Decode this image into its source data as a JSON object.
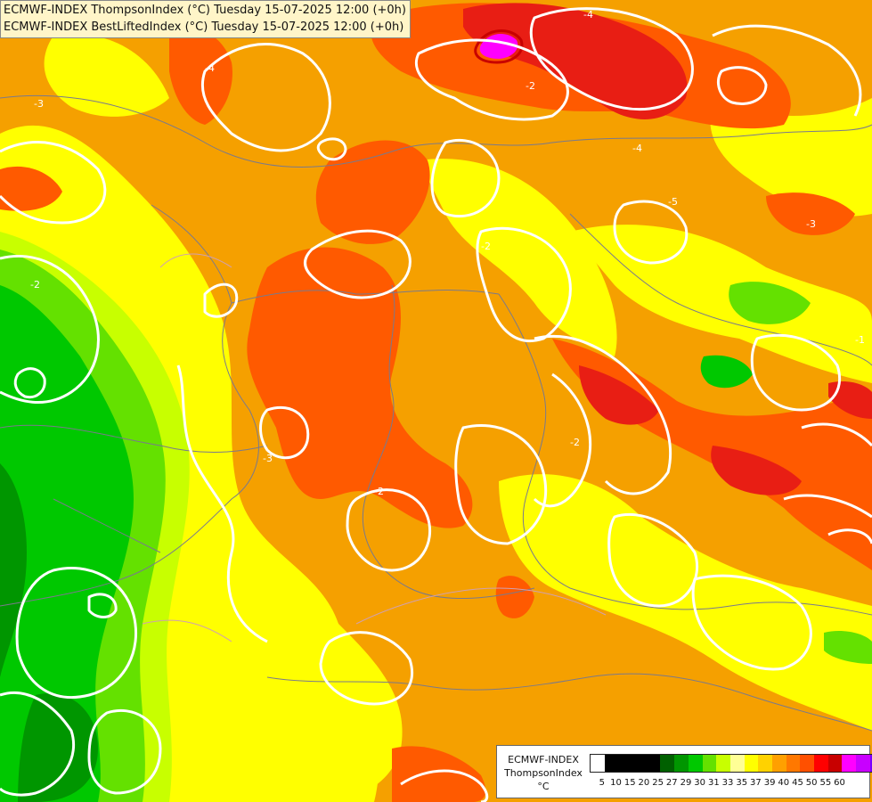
{
  "header": {
    "line1": "ECMWF-INDEX ThompsonIndex (°C) Tuesday 15-07-2025 12:00 (+0h)",
    "line2": "ECMWF-INDEX BestLiftedIndex (°C) Tuesday 15-07-2025 12:00 (+0h)"
  },
  "legend": {
    "title1": "ECMWF-INDEX",
    "title2": "ThompsonIndex",
    "unit": "°C",
    "swatches": [
      "#ffffff",
      "#000000",
      "#000000",
      "#000000",
      "#000000",
      "#006000",
      "#009600",
      "#00c800",
      "#64e100",
      "#c8ff00",
      "#ffff96",
      "#ffff00",
      "#ffd200",
      "#ffa000",
      "#ff7800",
      "#ff5000",
      "#ff0000",
      "#c80000",
      "#ff00ff",
      "#c800ff",
      "#7800ff",
      "#0000ff"
    ],
    "ticks": [
      "5",
      "10",
      "15",
      "20",
      "25",
      "27",
      "29",
      "30",
      "31",
      "33",
      "35",
      "37",
      "39",
      "40",
      "45",
      "50",
      "55",
      "60"
    ]
  },
  "contour_labels": [
    "-2",
    "-3",
    "-4",
    "-5",
    "-1",
    "-2",
    "-3",
    "-4",
    "-2",
    "-3",
    "-4",
    "-2",
    "-2"
  ],
  "colors": {
    "orange": "#f5a000",
    "dark_orange": "#ff5a00",
    "red": "#e81e14",
    "yellow": "#ffff00",
    "pale_yellow": "#ffff8c",
    "lime": "#c8ff00",
    "light_green": "#64e100",
    "green": "#00c800",
    "dark_green": "#009600",
    "magenta": "#ff00ff",
    "contour": "#ffffff"
  }
}
